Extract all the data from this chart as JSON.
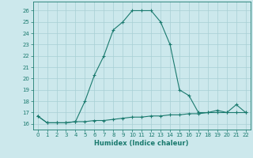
{
  "x": [
    0,
    1,
    2,
    3,
    4,
    5,
    6,
    7,
    8,
    9,
    10,
    11,
    12,
    13,
    14,
    15,
    16,
    17,
    18,
    19,
    20,
    21,
    22
  ],
  "y_curve": [
    16.7,
    16.1,
    16.1,
    16.1,
    16.2,
    18.0,
    20.3,
    22.0,
    24.3,
    25.0,
    26.0,
    26.0,
    26.0,
    25.0,
    23.0,
    19.0,
    18.5,
    17.0,
    17.0,
    17.2,
    17.0,
    17.7,
    17.0
  ],
  "y_flat": [
    16.7,
    16.1,
    16.1,
    16.1,
    16.2,
    16.2,
    16.3,
    16.3,
    16.4,
    16.5,
    16.6,
    16.6,
    16.7,
    16.7,
    16.8,
    16.8,
    16.9,
    16.9,
    17.0,
    17.0,
    17.0,
    17.0,
    17.0
  ],
  "color": "#1a7a6e",
  "bg_color": "#cce8ec",
  "grid_color": "#a8cfd4",
  "xlabel": "Humidex (Indice chaleur)",
  "ylim": [
    15.5,
    26.8
  ],
  "xlim": [
    -0.5,
    22.5
  ],
  "yticks": [
    16,
    17,
    18,
    19,
    20,
    21,
    22,
    23,
    24,
    25,
    26
  ],
  "xticks": [
    0,
    1,
    2,
    3,
    4,
    5,
    6,
    7,
    8,
    9,
    10,
    11,
    12,
    13,
    14,
    15,
    16,
    17,
    18,
    19,
    20,
    21,
    22
  ]
}
